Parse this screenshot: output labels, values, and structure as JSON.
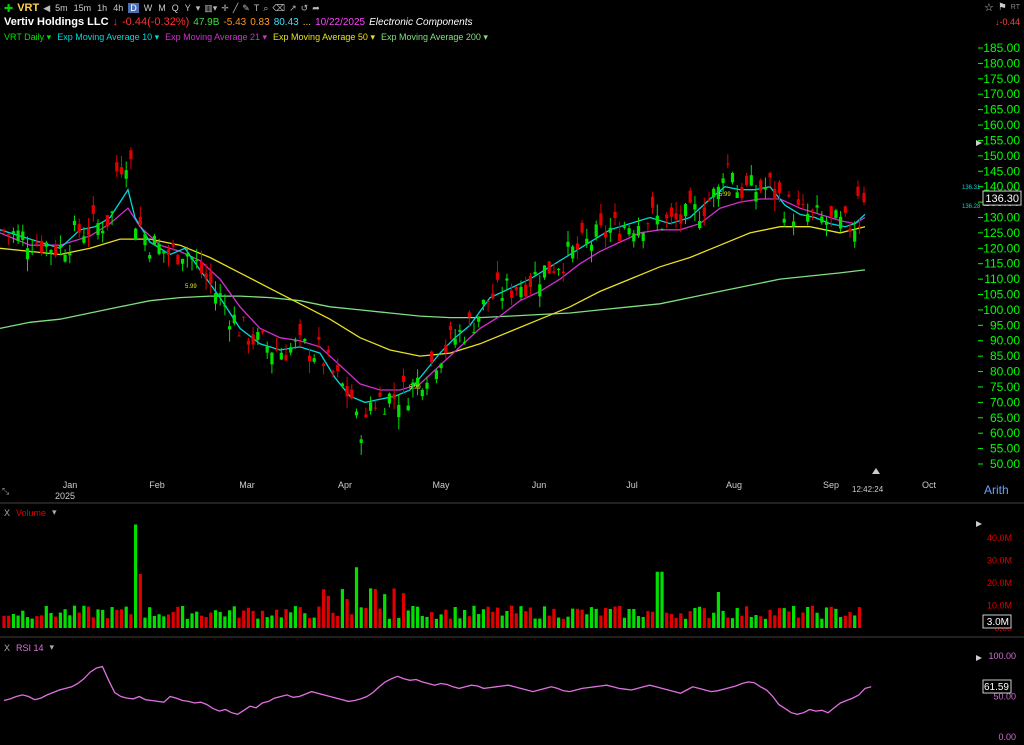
{
  "colors": {
    "up": "#00e000",
    "down": "#e00000",
    "ema10": "#00d8d8",
    "ema21": "#d030d0",
    "ema50": "#e8e020",
    "ema200": "#80e080",
    "rsi": "#e070e0",
    "priceAxis": "#00ff00"
  },
  "toolbar": {
    "symbol": "VRT",
    "intervals": [
      "5m",
      "15m",
      "1h",
      "4h",
      "D",
      "W",
      "M",
      "Q",
      "Y"
    ],
    "active_interval": "D"
  },
  "header": {
    "company": "Vertiv Holdings LLC",
    "change": "-0.44(-0.32%)",
    "market_cap": "47.9B",
    "change2": "-5.43",
    "val1": "0.83",
    "val2": "80.43",
    "ellipsis": "...",
    "date": "10/22/2025",
    "industry": "Electronic Components"
  },
  "top_right": {
    "rt": "RT",
    "change": "-0.44"
  },
  "studies": [
    {
      "label": "VRT Daily",
      "color": "#00e000"
    },
    {
      "label": "Exp Moving Average 10",
      "color": "#00d8d8"
    },
    {
      "label": "Exp Moving Average 21",
      "color": "#d030d0"
    },
    {
      "label": "Exp Moving Average 50",
      "color": "#e8e020"
    },
    {
      "label": "Exp Moving Average 200",
      "color": "#80e080"
    }
  ],
  "price_axis": {
    "ticks": [
      "185.00",
      "180.00",
      "175.00",
      "170.00",
      "165.00",
      "160.00",
      "155.00",
      "150.00",
      "145.00",
      "140.00",
      "135.00",
      "130.00",
      "125.00",
      "120.00",
      "115.00",
      "110.00",
      "105.00",
      "100.00",
      "95.00",
      "90.00",
      "85.00",
      "80.00",
      "75.00",
      "70.00",
      "65.00",
      "60.00",
      "55.00",
      "50.00"
    ],
    "last_price": "136.30",
    "ema_labels": [
      "136.31",
      "136.28"
    ],
    "scale": "Arith"
  },
  "time_axis": {
    "months": [
      "Jan",
      "Feb",
      "Mar",
      "Apr",
      "May",
      "Jun",
      "Jul",
      "Aug",
      "Sep",
      "Oct"
    ],
    "year": "2025",
    "clock": "12:42:24"
  },
  "annotations": [
    "5.99",
    "5.99",
    "5.99"
  ],
  "volume_panel": {
    "label": "Volume",
    "close": "X",
    "ticks": [
      "40.0M",
      "30.0M",
      "20.0M",
      "10.0M",
      "0.00"
    ],
    "last": "3.0M"
  },
  "rsi_panel": {
    "label": "RSI 14",
    "close": "X",
    "ticks": [
      "100.00",
      "50.00",
      "0.00"
    ],
    "last": "61.59"
  },
  "chart_data": {
    "type": "candlestick",
    "ylim": [
      48,
      188
    ],
    "ema_points": {
      "ema10": [
        [
          0,
          126
        ],
        [
          20,
          124
        ],
        [
          40,
          122
        ],
        [
          60,
          120
        ],
        [
          80,
          126
        ],
        [
          95,
          127
        ],
        [
          110,
          130
        ],
        [
          120,
          135
        ],
        [
          128,
          139
        ],
        [
          135,
          130
        ],
        [
          150,
          122
        ],
        [
          170,
          118
        ],
        [
          185,
          120
        ],
        [
          200,
          113
        ],
        [
          220,
          104
        ],
        [
          240,
          94
        ],
        [
          260,
          89
        ],
        [
          280,
          87
        ],
        [
          300,
          88
        ],
        [
          320,
          86
        ],
        [
          335,
          78
        ],
        [
          350,
          72
        ],
        [
          365,
          70
        ],
        [
          380,
          71
        ],
        [
          395,
          72
        ],
        [
          410,
          74
        ],
        [
          425,
          80
        ],
        [
          440,
          86
        ],
        [
          455,
          91
        ],
        [
          470,
          95
        ],
        [
          490,
          104
        ],
        [
          510,
          107
        ],
        [
          530,
          110
        ],
        [
          550,
          114
        ],
        [
          570,
          118
        ],
        [
          590,
          122
        ],
        [
          610,
          126
        ],
        [
          630,
          128
        ],
        [
          650,
          130
        ],
        [
          670,
          128
        ],
        [
          690,
          130
        ],
        [
          710,
          136
        ],
        [
          725,
          140
        ],
        [
          740,
          139
        ],
        [
          755,
          139
        ],
        [
          770,
          140
        ],
        [
          785,
          134
        ],
        [
          800,
          131
        ],
        [
          815,
          130
        ],
        [
          830,
          128
        ],
        [
          845,
          127
        ],
        [
          855,
          128
        ],
        [
          865,
          131
        ]
      ],
      "ema21": [
        [
          0,
          125
        ],
        [
          30,
          121
        ],
        [
          60,
          121
        ],
        [
          90,
          124
        ],
        [
          110,
          128
        ],
        [
          128,
          133
        ],
        [
          140,
          127
        ],
        [
          160,
          121
        ],
        [
          180,
          119
        ],
        [
          200,
          116
        ],
        [
          220,
          110
        ],
        [
          240,
          101
        ],
        [
          260,
          94
        ],
        [
          280,
          91
        ],
        [
          300,
          90
        ],
        [
          320,
          88
        ],
        [
          340,
          82
        ],
        [
          360,
          76
        ],
        [
          380,
          74
        ],
        [
          400,
          74
        ],
        [
          420,
          76
        ],
        [
          440,
          82
        ],
        [
          460,
          88
        ],
        [
          480,
          94
        ],
        [
          500,
          98
        ],
        [
          520,
          103
        ],
        [
          540,
          106
        ],
        [
          560,
          110
        ],
        [
          580,
          115
        ],
        [
          600,
          119
        ],
        [
          620,
          122
        ],
        [
          640,
          125
        ],
        [
          660,
          126
        ],
        [
          680,
          126
        ],
        [
          700,
          128
        ],
        [
          720,
          133
        ],
        [
          740,
          135
        ],
        [
          760,
          136
        ],
        [
          780,
          136
        ],
        [
          800,
          133
        ],
        [
          820,
          131
        ],
        [
          840,
          129
        ],
        [
          855,
          128
        ],
        [
          865,
          130
        ]
      ],
      "ema50": [
        [
          0,
          120
        ],
        [
          30,
          119
        ],
        [
          60,
          118
        ],
        [
          90,
          120
        ],
        [
          120,
          123
        ],
        [
          150,
          123
        ],
        [
          180,
          121
        ],
        [
          210,
          117
        ],
        [
          240,
          112
        ],
        [
          270,
          107
        ],
        [
          300,
          102
        ],
        [
          330,
          97
        ],
        [
          360,
          91
        ],
        [
          390,
          87
        ],
        [
          420,
          85
        ],
        [
          450,
          86
        ],
        [
          480,
          89
        ],
        [
          510,
          93
        ],
        [
          540,
          97
        ],
        [
          570,
          101
        ],
        [
          600,
          106
        ],
        [
          630,
          110
        ],
        [
          660,
          114
        ],
        [
          690,
          117
        ],
        [
          720,
          121
        ],
        [
          750,
          125
        ],
        [
          780,
          127
        ],
        [
          810,
          127
        ],
        [
          840,
          125
        ],
        [
          865,
          127
        ]
      ],
      "ema200": [
        [
          0,
          94
        ],
        [
          30,
          96
        ],
        [
          60,
          97
        ],
        [
          90,
          99
        ],
        [
          120,
          101
        ],
        [
          150,
          103
        ],
        [
          180,
          104
        ],
        [
          210,
          104.5
        ],
        [
          240,
          104.5
        ],
        [
          270,
          104
        ],
        [
          300,
          103
        ],
        [
          330,
          101
        ],
        [
          360,
          100
        ],
        [
          390,
          99
        ],
        [
          420,
          98
        ],
        [
          450,
          97.5
        ],
        [
          480,
          97.5
        ],
        [
          510,
          98
        ],
        [
          540,
          98.5
        ],
        [
          570,
          99
        ],
        [
          600,
          100
        ],
        [
          630,
          101
        ],
        [
          660,
          102
        ],
        [
          690,
          104
        ],
        [
          720,
          106
        ],
        [
          750,
          108
        ],
        [
          780,
          110
        ],
        [
          810,
          111
        ],
        [
          840,
          112
        ],
        [
          865,
          113
        ]
      ]
    },
    "rsi_range": [
      0,
      100
    ]
  }
}
